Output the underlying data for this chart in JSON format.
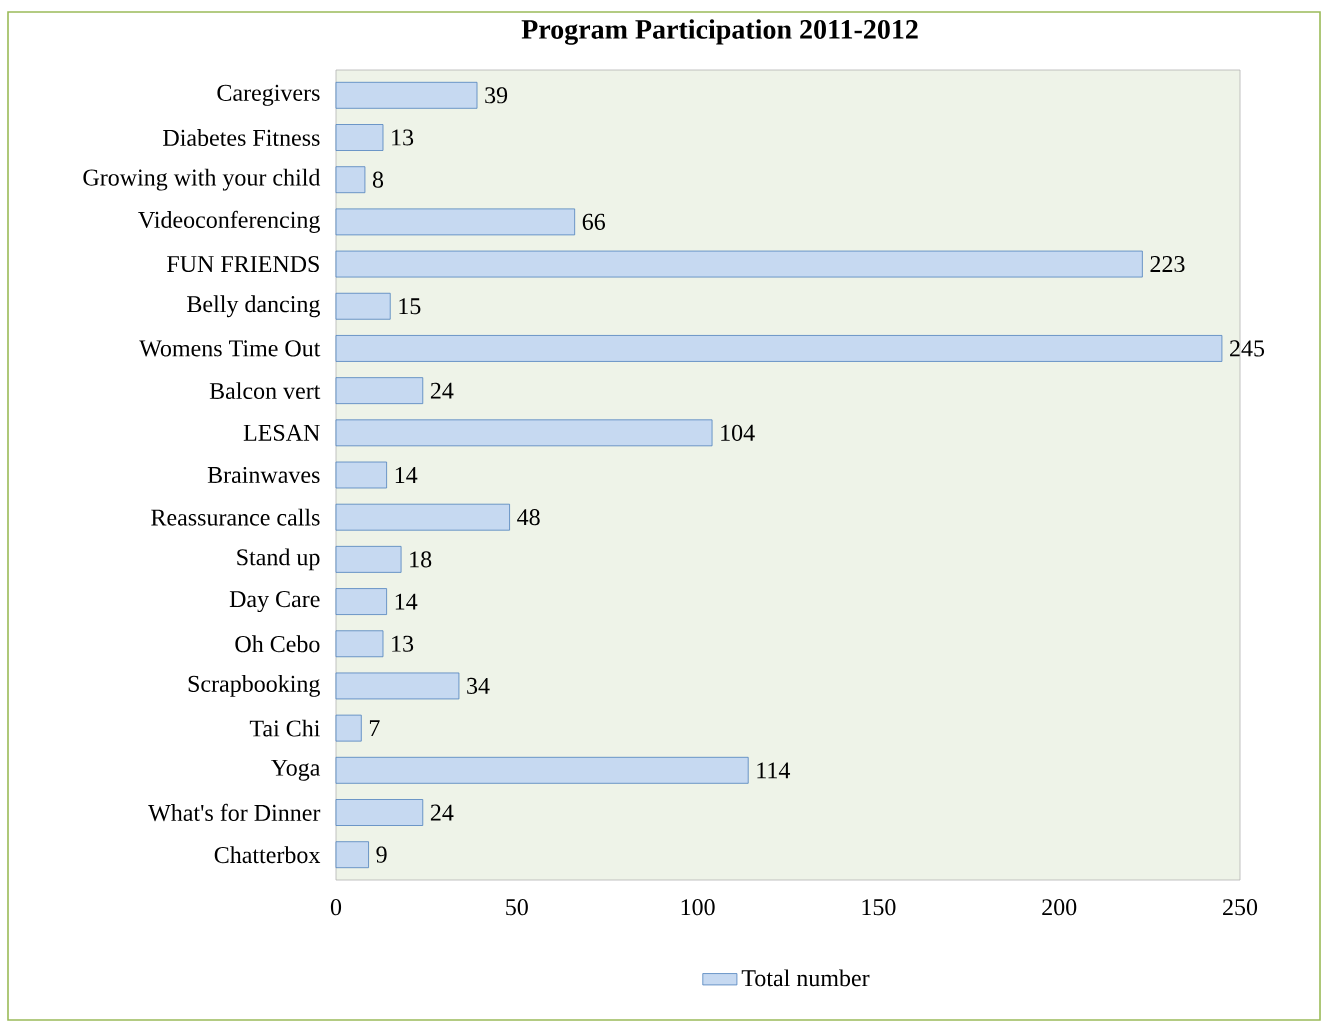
{
  "chart_data": {
    "type": "bar",
    "orientation": "horizontal",
    "title": "Program Participation 2011-2012",
    "categories": [
      "Caregivers",
      "Diabetes Fitness",
      "Growing with your child",
      "Videoconferencing",
      "FUN FRIENDS",
      "Belly dancing",
      "Womens Time Out",
      "Balcon vert",
      "LESAN",
      "Brainwaves",
      "Reassurance calls",
      "Stand up",
      "Day Care",
      "Oh Cebo",
      "Scrapbooking",
      "Tai Chi",
      "Yoga",
      "What's for Dinner",
      "Chatterbox"
    ],
    "series": [
      {
        "name": "Total number",
        "color": "#c6d9f1",
        "values": [
          39,
          13,
          8,
          66,
          223,
          15,
          245,
          24,
          104,
          14,
          48,
          18,
          14,
          13,
          34,
          7,
          114,
          24,
          9
        ]
      }
    ],
    "xlim": [
      0,
      250
    ],
    "xticks": [
      0,
      50,
      100,
      150,
      200,
      250
    ],
    "data_labels": true,
    "legend": "bottom"
  }
}
